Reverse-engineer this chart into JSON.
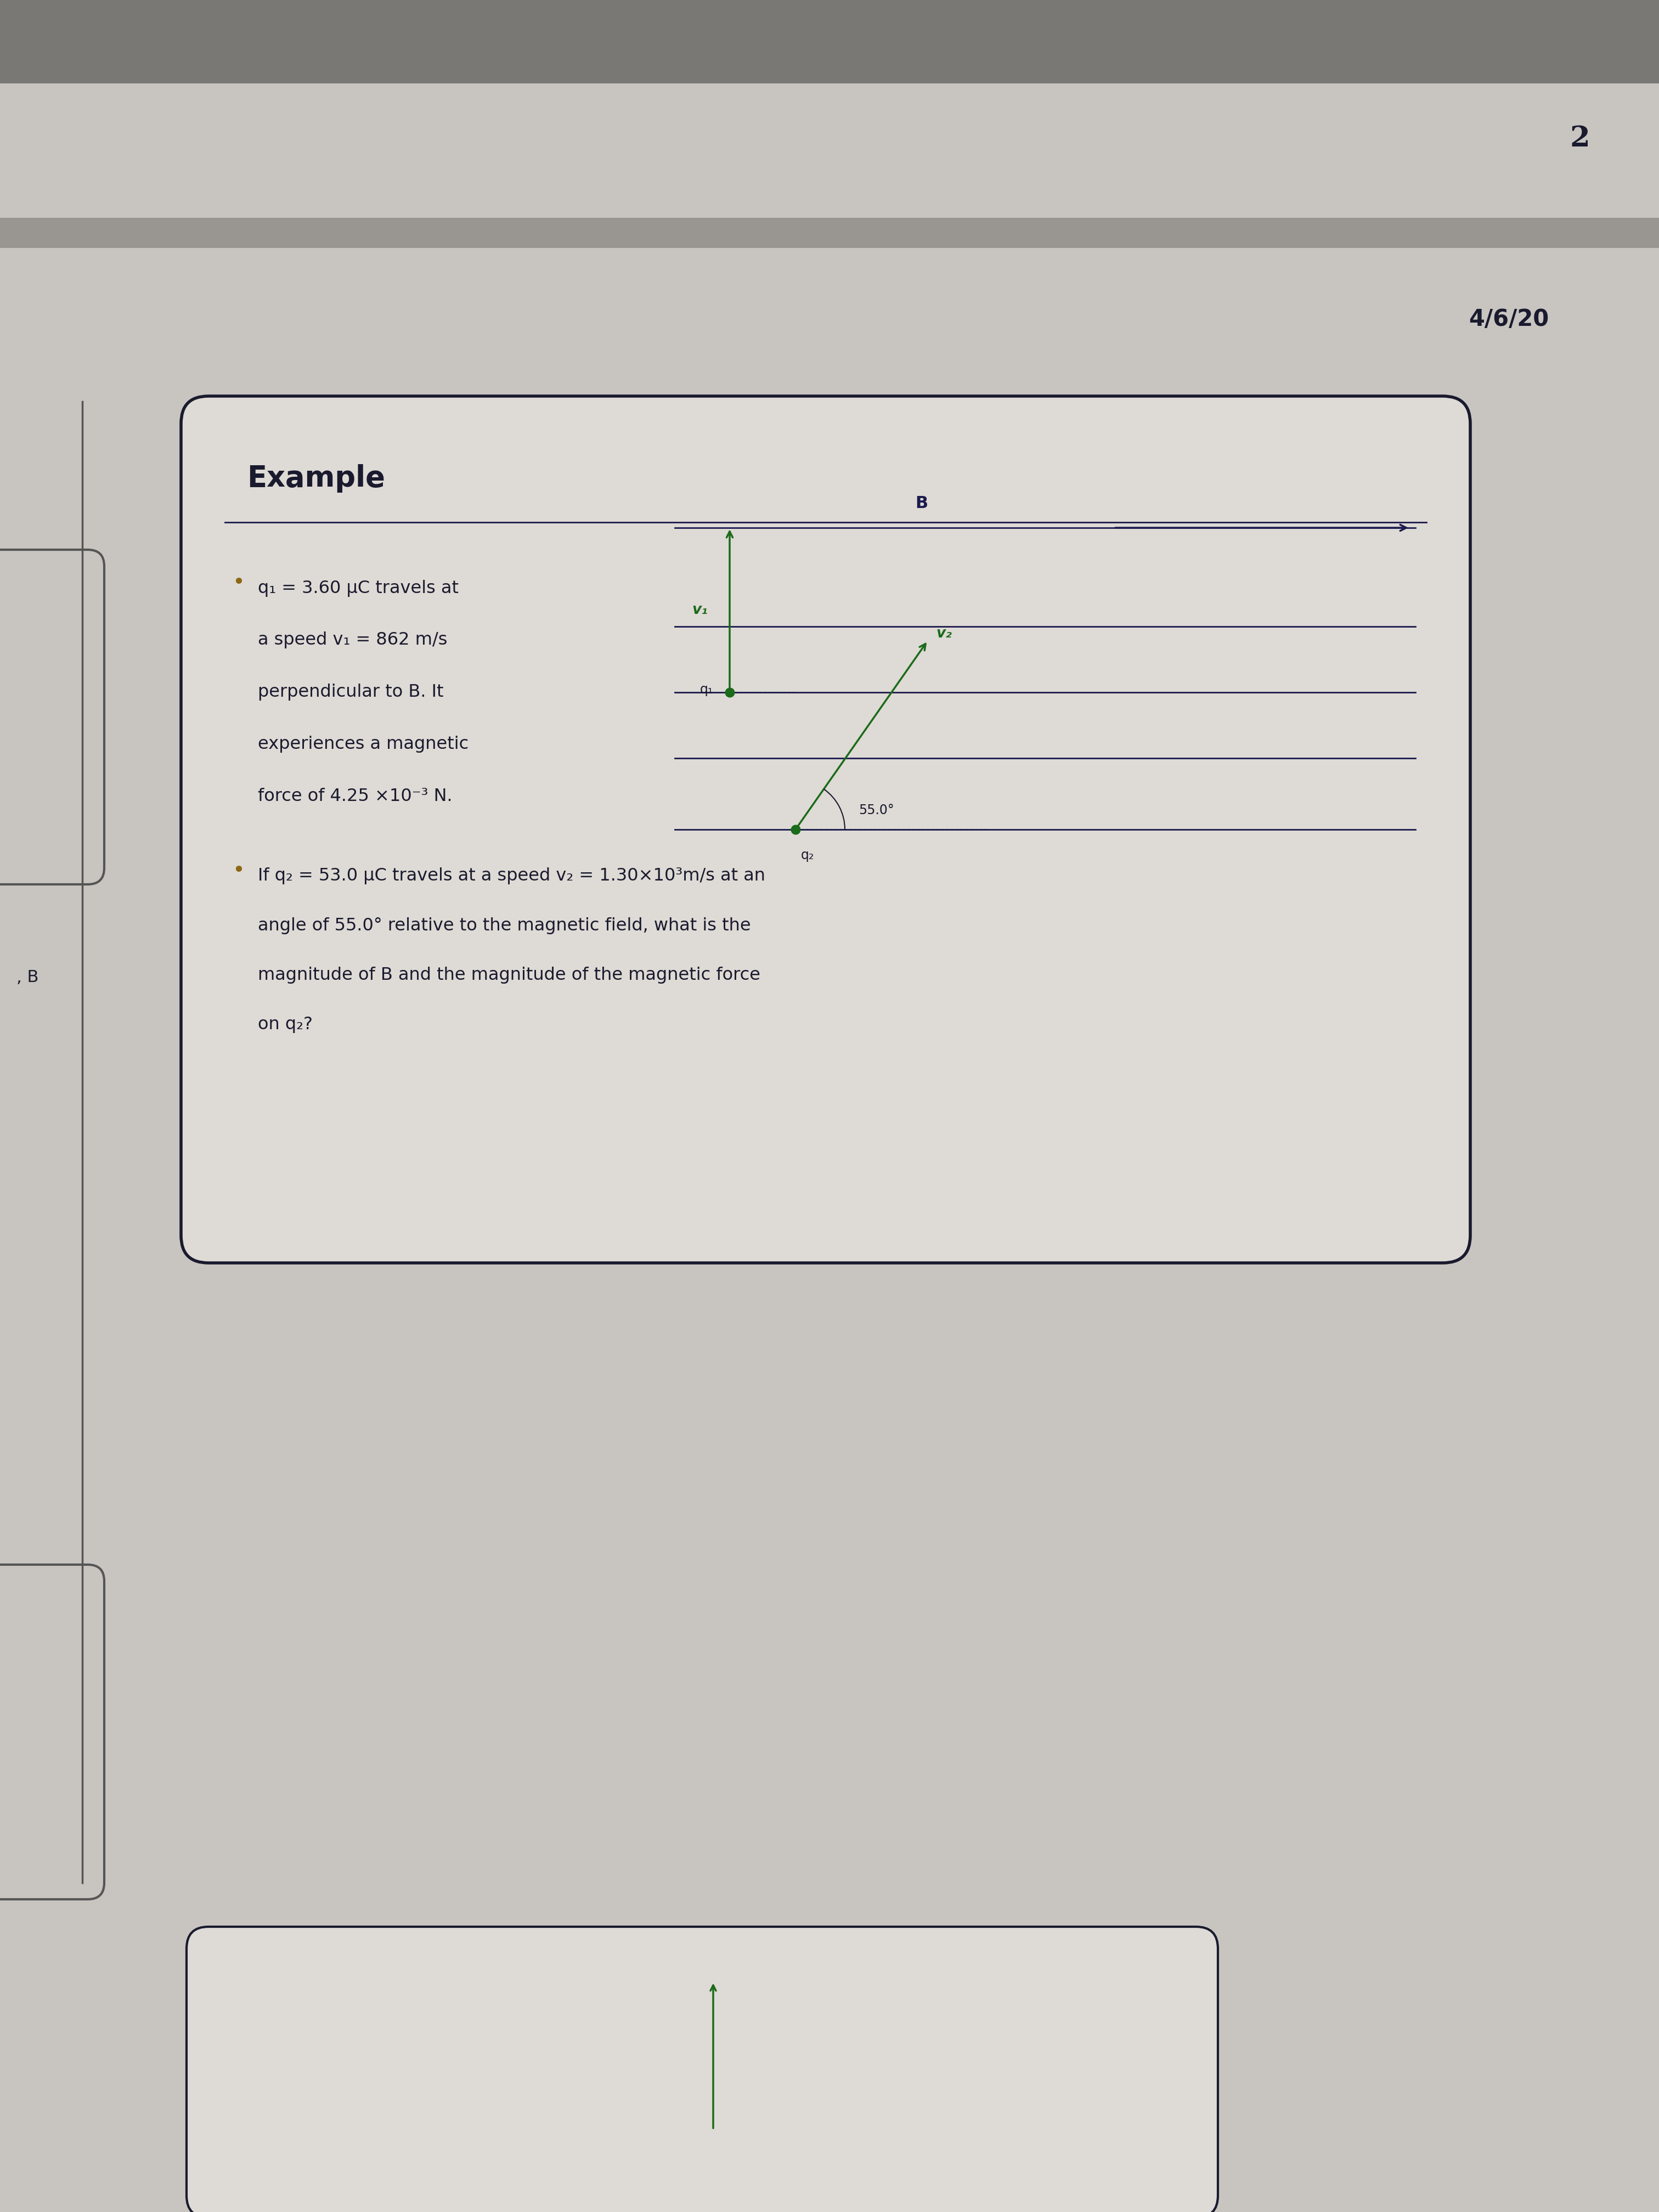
{
  "bg_color": "#c8c4c0",
  "header_bar_color": "#888480",
  "page_number": "2",
  "date": "4/6/20",
  "box_bg": "#dedad5",
  "box_border": "#1a1a2e",
  "box_title": "Example",
  "bullet1_lines": [
    "q₁ = 3.60 μC travels at",
    "a speed v₁ = 862 m/s",
    "perpendicular to B. It",
    "experiences a magnetic",
    "force of 4.25 ×10⁻³ N."
  ],
  "bullet2_lines": [
    "If q₂ = 53.0 μC travels at a speed v₂ = 1.30×10³m/s at an",
    "angle of 55.0° relative to the magnetic field, what is the",
    "magnitude of B and the magnitude of the magnetic force",
    "on q₂?"
  ],
  "diagram_B_label": "B",
  "diagram_v1_label": "v₁",
  "diagram_q1_label": "q₁",
  "diagram_v2_label": "v₂",
  "diagram_q2_label": "q₂",
  "diagram_angle_label": "55.0°",
  "arrow_color_B": "#1a1a4e",
  "arrow_color_v1": "#1a6b1a",
  "arrow_color_v2": "#1a6b1a",
  "line_color": "#1a1a4e",
  "dot_color_q1": "#1a6b1a",
  "dot_color_q2": "#1a6b1a",
  "page_num_color": "#1a1a2e",
  "date_color": "#1a1a2e",
  "title_color": "#1a1a2e",
  "text_color": "#1a1a2e",
  "bullet_color": "#8b6914",
  "left_bar_color": "#444",
  "left_notebook_color": "#cccccc"
}
